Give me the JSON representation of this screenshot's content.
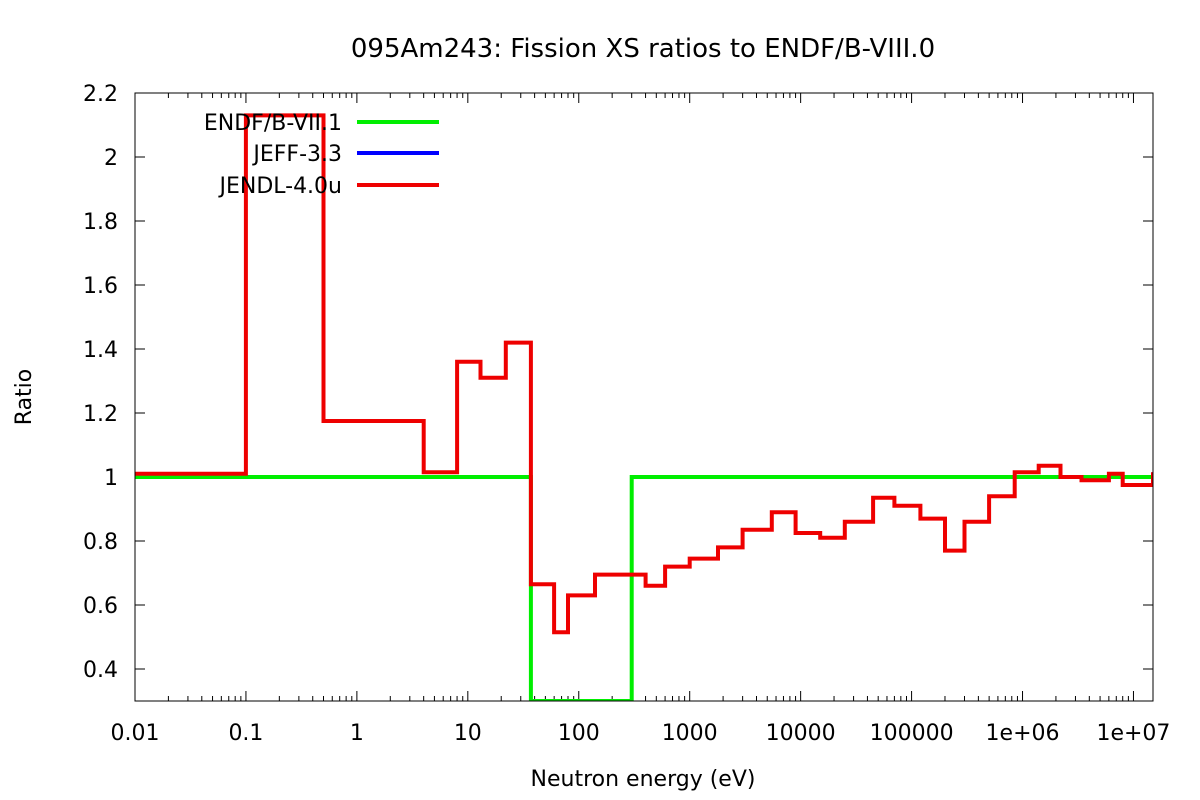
{
  "chart_data": {
    "type": "line",
    "title": "095Am243: Fission XS ratios to ENDF/B-VIII.0",
    "xlabel": "Neutron energy (eV)",
    "ylabel": "Ratio",
    "xscale": "log",
    "xlim": [
      0.01,
      15000000
    ],
    "ylim": [
      0.3,
      2.2
    ],
    "x_ticks": [
      0.01,
      0.1,
      1,
      10,
      100,
      1000,
      10000,
      100000,
      1000000,
      10000000
    ],
    "x_tick_labels": [
      "0.01",
      "0.1",
      "1",
      "10",
      "100",
      "1000",
      "10000",
      "100000",
      "1e+06",
      "1e+07"
    ],
    "y_ticks": [
      0.4,
      0.6,
      0.8,
      1.0,
      1.2,
      1.4,
      1.6,
      1.8,
      2.0,
      2.2
    ],
    "y_tick_labels": [
      "0.4",
      "0.6",
      "0.8",
      "1",
      "1.2",
      "1.4",
      "1.6",
      "1.8",
      "2",
      "2.2"
    ],
    "grid": false,
    "legend_position": "top-left",
    "series": [
      {
        "name": "ENDF/B-VII.1",
        "color": "#00ee00",
        "step": "post",
        "x": [
          0.01,
          37,
          37,
          300,
          300,
          15000000
        ],
        "y": [
          1.0,
          1.0,
          0.3,
          0.3,
          1.0,
          1.0
        ]
      },
      {
        "name": "JEFF-3.3",
        "color": "#0000ff",
        "step": "post",
        "x": [
          0.01,
          0.1,
          0.5,
          4,
          8,
          13,
          22,
          37,
          60,
          80,
          140,
          300,
          400,
          600,
          1000,
          1800,
          3000,
          5500,
          9000,
          15000,
          25000,
          45000,
          70000,
          120000,
          200000,
          300000,
          500000,
          850000,
          1400000,
          2200000,
          3400000,
          6000000,
          8000000,
          15000000
        ],
        "y": [
          1.01,
          2.13,
          1.175,
          1.015,
          1.36,
          1.31,
          1.42,
          0.665,
          0.515,
          0.63,
          0.695,
          0.695,
          0.66,
          0.72,
          0.745,
          0.78,
          0.835,
          0.89,
          0.825,
          0.81,
          0.86,
          0.935,
          0.91,
          0.87,
          0.77,
          0.86,
          0.94,
          1.015,
          1.035,
          1.0,
          0.99,
          1.01,
          0.975,
          1.015
        ]
      },
      {
        "name": "JENDL-4.0u",
        "color": "#ee0000",
        "step": "post",
        "x": [
          0.01,
          0.1,
          0.5,
          4,
          8,
          13,
          22,
          37,
          60,
          80,
          140,
          300,
          400,
          600,
          1000,
          1800,
          3000,
          5500,
          9000,
          15000,
          25000,
          45000,
          70000,
          120000,
          200000,
          300000,
          500000,
          850000,
          1400000,
          2200000,
          3400000,
          6000000,
          8000000,
          15000000
        ],
        "y": [
          1.01,
          2.13,
          1.175,
          1.015,
          1.36,
          1.31,
          1.42,
          0.665,
          0.515,
          0.63,
          0.695,
          0.695,
          0.66,
          0.72,
          0.745,
          0.78,
          0.835,
          0.89,
          0.825,
          0.81,
          0.86,
          0.935,
          0.91,
          0.87,
          0.77,
          0.86,
          0.94,
          1.015,
          1.035,
          1.0,
          0.99,
          1.01,
          0.975,
          1.015
        ]
      }
    ]
  }
}
